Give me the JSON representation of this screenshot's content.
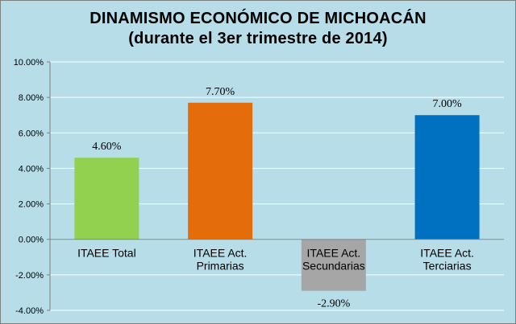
{
  "chart_data": {
    "type": "bar",
    "title": "DINAMISMO ECONÓMICO DE MICHOACÁN",
    "subtitle": "(durante el 3er trimestre de 2014)",
    "categories": [
      [
        "ITAEE Total"
      ],
      [
        "ITAEE Act.",
        "Primarias"
      ],
      [
        "ITAEE Act.",
        "Secundarias"
      ],
      [
        "ITAEE Act.",
        "Terciarias"
      ]
    ],
    "values": [
      4.6,
      7.7,
      -2.9,
      7.0
    ],
    "data_labels": [
      "4.60%",
      "7.70%",
      "-2.90%",
      "7.00%"
    ],
    "colors": [
      "#92d050",
      "#e46c0a",
      "#a6a6a6",
      "#0070c0"
    ],
    "ylim": [
      -4,
      10
    ],
    "yticks": [
      -4,
      -2,
      0,
      2,
      4,
      6,
      8,
      10
    ],
    "ytick_labels": [
      "-4.00%",
      "-2.00%",
      "0.00%",
      "2.00%",
      "4.00%",
      "6.00%",
      "8.00%",
      "10.00%"
    ],
    "grid": true,
    "background": "#b6dde8",
    "gridline_color": "#ffffff",
    "xlabel": "",
    "ylabel": ""
  }
}
